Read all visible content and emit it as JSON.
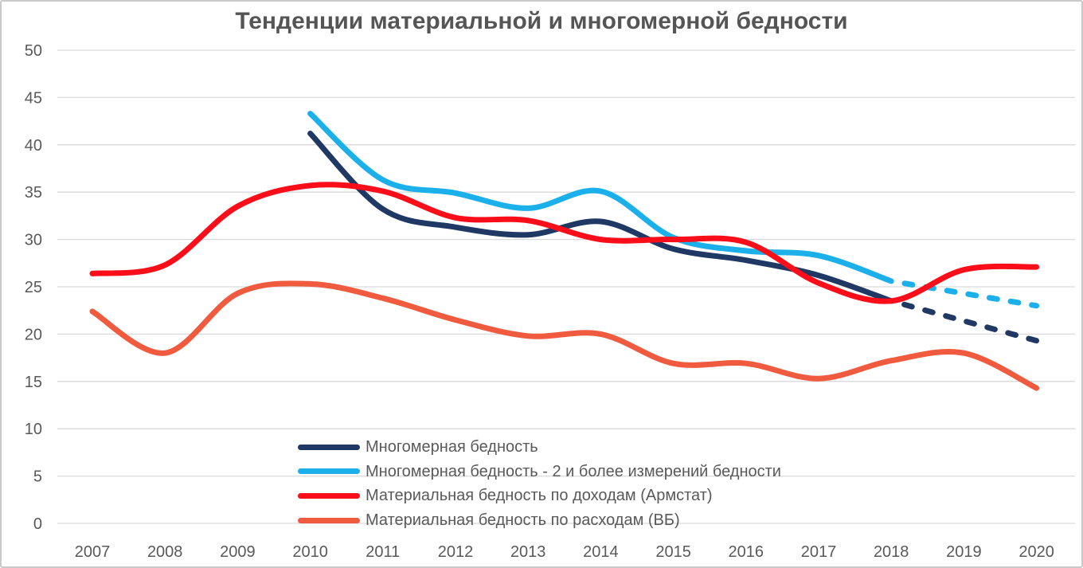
{
  "chart_data": {
    "type": "line",
    "title": "Тенденции материальной и многомерной бедности",
    "xlabel": "",
    "ylabel": "",
    "ylim": [
      0,
      50
    ],
    "y_tick_step": 5,
    "y_tick_labels": [
      "0",
      "5",
      "10",
      "15",
      "20",
      "25",
      "30",
      "35",
      "40",
      "45",
      "50"
    ],
    "x_tick_labels": [
      "2007",
      "2008",
      "2009",
      "2010",
      "2011",
      "2012",
      "2013",
      "2014",
      "2015",
      "2016",
      "2017",
      "2018",
      "2019",
      "2020"
    ],
    "grid": "horizontal",
    "legend_position": "inside-bottom-left",
    "colors": {
      "grid": "#d9d9d9",
      "axis_text": "#595959",
      "title_text": "#555555",
      "frame": "#c9c9c9"
    },
    "series": [
      {
        "name": "Многомерная бедность",
        "color": "#1F3864",
        "solid": [
          [
            2010,
            41.2
          ],
          [
            2011,
            33.2
          ],
          [
            2012,
            31.3
          ],
          [
            2013,
            30.5
          ],
          [
            2014,
            31.9
          ],
          [
            2015,
            29.0
          ],
          [
            2016,
            27.8
          ],
          [
            2017,
            26.2
          ],
          [
            2018,
            23.5
          ]
        ],
        "dashed": [
          [
            2018,
            23.5
          ],
          [
            2019,
            21.4
          ],
          [
            2020,
            19.3
          ]
        ]
      },
      {
        "name": "Многомерная бедность - 2 и более измерений бедности",
        "color": "#1CB0EA",
        "solid": [
          [
            2010,
            43.3
          ],
          [
            2011,
            36.3
          ],
          [
            2012,
            34.9
          ],
          [
            2013,
            33.3
          ],
          [
            2014,
            35.1
          ],
          [
            2015,
            30.2
          ],
          [
            2016,
            28.8
          ],
          [
            2017,
            28.3
          ],
          [
            2018,
            25.6
          ]
        ],
        "dashed": [
          [
            2018,
            25.6
          ],
          [
            2019,
            24.3
          ],
          [
            2020,
            23.0
          ]
        ]
      },
      {
        "name": "Материальная бедность по доходам (Армстат)",
        "color": "#FB0D1A",
        "solid": [
          [
            2007,
            26.4
          ],
          [
            2008,
            27.3
          ],
          [
            2009,
            33.5
          ],
          [
            2010,
            35.7
          ],
          [
            2011,
            35.1
          ],
          [
            2012,
            32.3
          ],
          [
            2013,
            32.0
          ],
          [
            2014,
            30.0
          ],
          [
            2015,
            30.0
          ],
          [
            2016,
            29.7
          ],
          [
            2017,
            25.4
          ],
          [
            2018,
            23.5
          ],
          [
            2019,
            26.8
          ],
          [
            2020,
            27.1
          ]
        ]
      },
      {
        "name": "Материальная бедность по расходам (ВБ)",
        "color": "#F05B40",
        "solid": [
          [
            2007,
            22.4
          ],
          [
            2008,
            18.0
          ],
          [
            2009,
            24.3
          ],
          [
            2010,
            25.3
          ],
          [
            2011,
            23.8
          ],
          [
            2012,
            21.5
          ],
          [
            2013,
            19.8
          ],
          [
            2014,
            20.0
          ],
          [
            2015,
            16.9
          ],
          [
            2016,
            16.9
          ],
          [
            2017,
            15.3
          ],
          [
            2018,
            17.2
          ],
          [
            2019,
            18.0
          ],
          [
            2020,
            14.3
          ]
        ]
      }
    ]
  }
}
